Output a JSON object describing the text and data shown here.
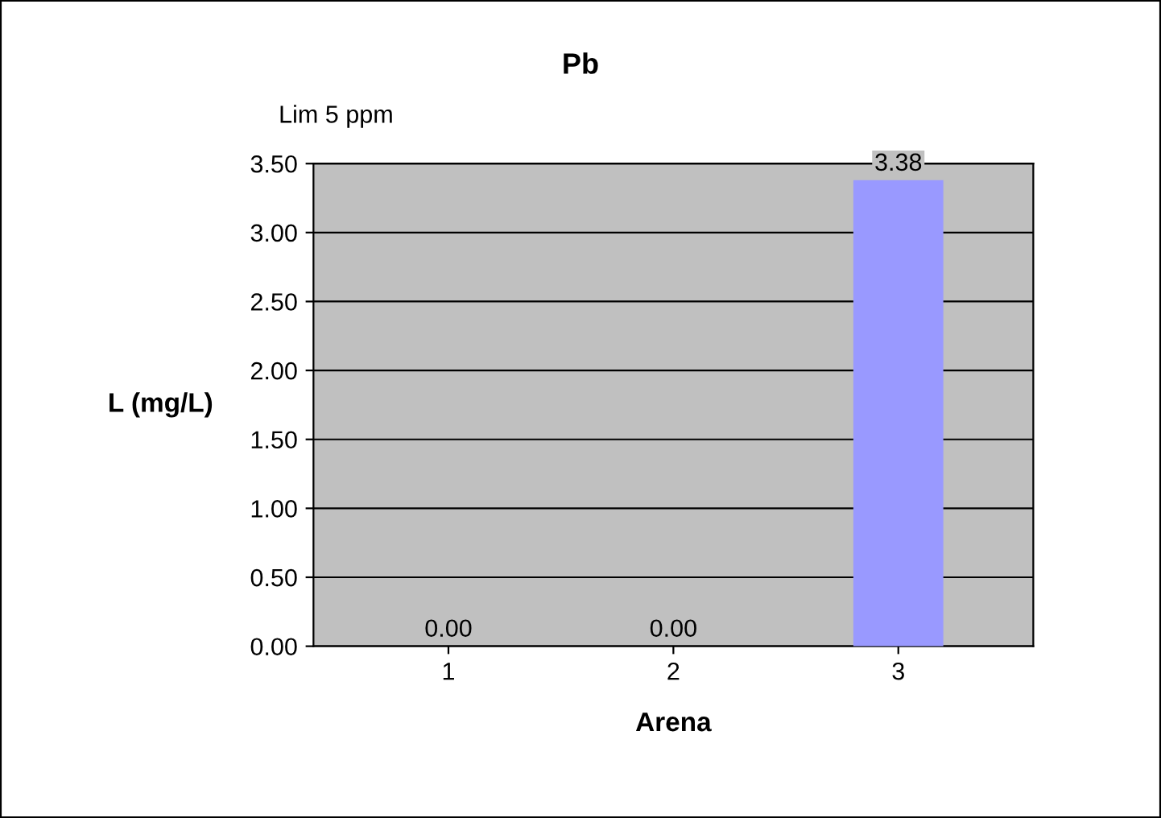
{
  "chart_data": {
    "type": "bar",
    "title": "Pb",
    "annotations": [
      "Lim 5 ppm"
    ],
    "xlabel": "Arena",
    "ylabel": "L (mg/L)",
    "categories": [
      "1",
      "2",
      "3"
    ],
    "values": [
      0.0,
      0.0,
      3.38
    ],
    "value_labels": [
      "0.00",
      "0.00",
      "3.38"
    ],
    "color": "#9999ff",
    "ylim": [
      0,
      3.5
    ],
    "yticks": [
      {
        "value": 0,
        "label": "0.00"
      },
      {
        "value": 0.5,
        "label": "0.50"
      },
      {
        "value": 1,
        "label": "1.00"
      },
      {
        "value": 1.5,
        "label": "1.50"
      },
      {
        "value": 2,
        "label": "2.00"
      },
      {
        "value": 2.5,
        "label": "2.50"
      },
      {
        "value": 3,
        "label": "3.00"
      },
      {
        "value": 3.5,
        "label": "3.50"
      }
    ],
    "grid": "y",
    "legend": false
  }
}
